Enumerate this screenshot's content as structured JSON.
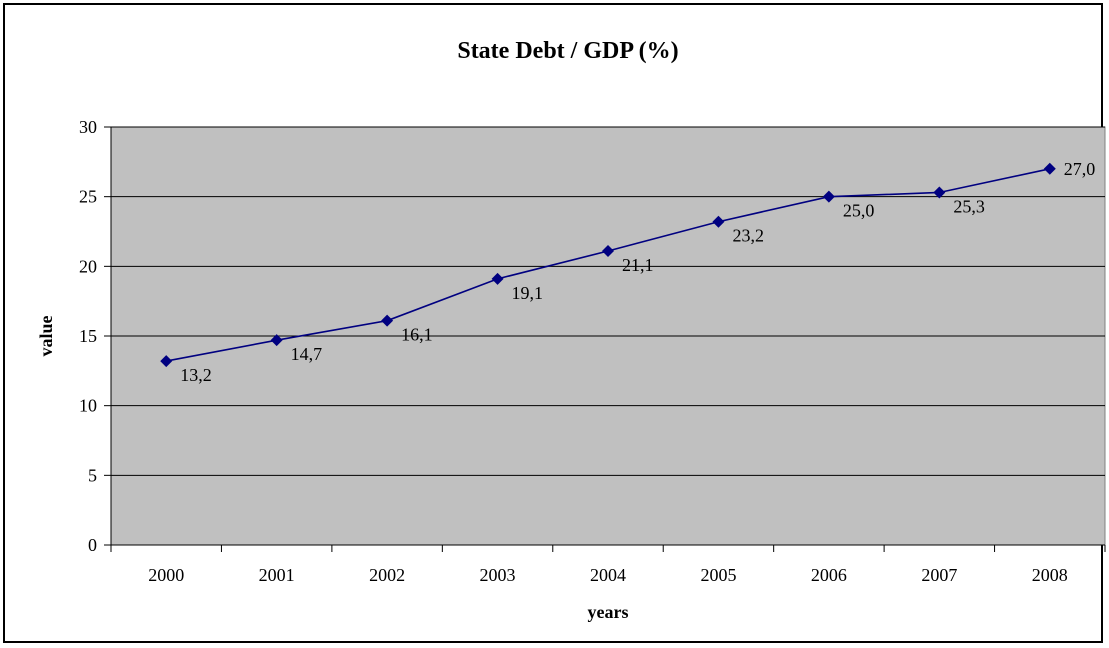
{
  "chart_data": {
    "type": "line",
    "title": "State Debt / GDP (%)",
    "xlabel": "years",
    "ylabel": "value",
    "categories": [
      "2000",
      "2001",
      "2002",
      "2003",
      "2004",
      "2005",
      "2006",
      "2007",
      "2008"
    ],
    "series": [
      {
        "values": [
          13.2,
          14.7,
          16.1,
          19.1,
          21.1,
          23.2,
          25.0,
          25.3,
          27.0
        ],
        "labels": [
          "13,2",
          "14,7",
          "16,1",
          "19,1",
          "21,1",
          "23,2",
          "25,0",
          "25,3",
          "27,0"
        ],
        "color": "#000080",
        "marker": "diamond"
      }
    ],
    "ylim": [
      0,
      30
    ],
    "yticks": [
      "0",
      "5",
      "10",
      "15",
      "20",
      "25",
      "30"
    ],
    "grid": true,
    "plot_background": "#C0C0C0",
    "legend": "none"
  }
}
